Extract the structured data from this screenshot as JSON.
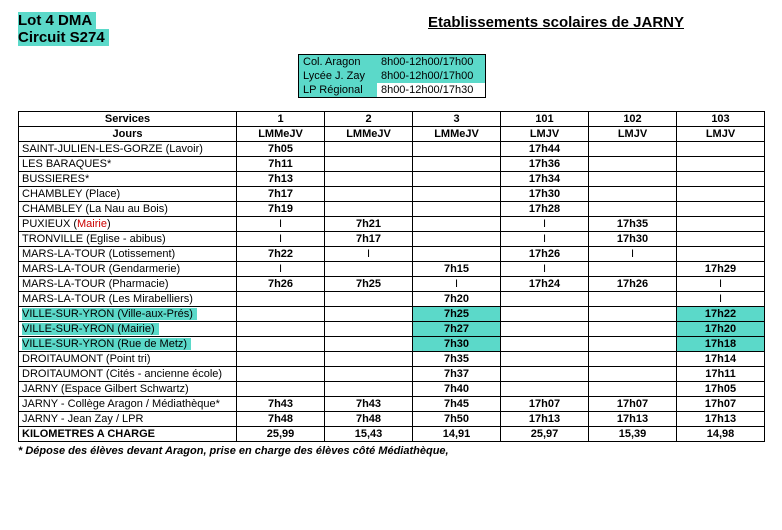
{
  "header": {
    "lot": "Lot 4 DMA",
    "circuit": "Circuit S274",
    "etab_title": "Etablissements scolaires de JARNY"
  },
  "schools": [
    {
      "name": "Col. Aragon",
      "hours": "8h00-12h00/17h00"
    },
    {
      "name": "Lycée J. Zay",
      "hours": "8h00-12h00/17h00"
    },
    {
      "name": "LP Régional",
      "hours": "8h00-12h00/17h30"
    }
  ],
  "services_label": "Services",
  "jours_label": "Jours",
  "services": [
    "1",
    "2",
    "3",
    "101",
    "102",
    "103"
  ],
  "days": [
    "LMMeJV",
    "LMMeJV",
    "LMMeJV",
    "LMJV",
    "LMJV",
    "LMJV"
  ],
  "rows": [
    {
      "stop": "SAINT-JULIEN-LES-GORZE (Lavoir)",
      "cells": [
        "7h05",
        "",
        "",
        "17h44",
        "",
        ""
      ]
    },
    {
      "stop": "LES BARAQUES*",
      "cells": [
        "7h11",
        "",
        "",
        "17h36",
        "",
        ""
      ]
    },
    {
      "stop": "BUSSIERES*",
      "cells": [
        "7h13",
        "",
        "",
        "17h34",
        "",
        ""
      ]
    },
    {
      "stop": "CHAMBLEY (Place)",
      "cells": [
        "7h17",
        "",
        "",
        "17h30",
        "",
        ""
      ]
    },
    {
      "stop": "CHAMBLEY (La Nau au Bois)",
      "cells": [
        "7h19",
        "",
        "",
        "17h28",
        "",
        ""
      ]
    },
    {
      "stop": "PUXIEUX (Mairie)",
      "red_part": "Mairie",
      "cells": [
        "I",
        "7h21",
        "",
        "I",
        "17h35",
        ""
      ]
    },
    {
      "stop": "TRONVILLE (Eglise - abibus)",
      "cells": [
        "I",
        "7h17",
        "",
        "I",
        "17h30",
        ""
      ]
    },
    {
      "stop": "MARS-LA-TOUR (Lotissement)",
      "cells": [
        "7h22",
        "I",
        "",
        "17h26",
        "I",
        ""
      ]
    },
    {
      "stop": "MARS-LA-TOUR (Gendarmerie)",
      "cells": [
        "I",
        "",
        "7h15",
        "I",
        "",
        "17h29"
      ]
    },
    {
      "stop": "MARS-LA-TOUR (Pharmacie)",
      "cells": [
        "7h26",
        "7h25",
        "I",
        "17h24",
        "17h26",
        "I"
      ]
    },
    {
      "stop": "MARS-LA-TOUR (Les Mirabelliers)",
      "cells": [
        "",
        "",
        "7h20",
        "",
        "",
        "I"
      ]
    },
    {
      "stop": "VILLE-SUR-YRON (Ville-aux-Prés)",
      "hl": true,
      "cells": [
        "",
        "",
        "7h25",
        "",
        "",
        "17h22"
      ],
      "cell_hl": [
        false,
        false,
        true,
        false,
        false,
        true
      ]
    },
    {
      "stop": "VILLE-SUR-YRON (Mairie)",
      "hl": true,
      "cells": [
        "",
        "",
        "7h27",
        "",
        "",
        "17h20"
      ],
      "cell_hl": [
        false,
        false,
        true,
        false,
        false,
        true
      ]
    },
    {
      "stop": "VILLE-SUR-YRON (Rue de Metz)",
      "hl": true,
      "cells": [
        "",
        "",
        "7h30",
        "",
        "",
        "17h18"
      ],
      "cell_hl": [
        false,
        false,
        true,
        false,
        false,
        true
      ]
    },
    {
      "stop": "DROITAUMONT (Point tri)",
      "cells": [
        "",
        "",
        "7h35",
        "",
        "",
        "17h14"
      ]
    },
    {
      "stop": "DROITAUMONT (Cités - ancienne école)",
      "cells": [
        "",
        "",
        "7h37",
        "",
        "",
        "17h11"
      ]
    },
    {
      "stop": "JARNY (Espace Gilbert Schwartz)",
      "cells": [
        "",
        "",
        "7h40",
        "",
        "",
        "17h05"
      ]
    },
    {
      "stop": "JARNY - Collège Aragon / Médiathèque*",
      "cells": [
        "7h43",
        "7h43",
        "7h45",
        "17h07",
        "17h07",
        "17h07"
      ]
    },
    {
      "stop": "JARNY - Jean Zay / LPR",
      "cells": [
        "7h48",
        "7h48",
        "7h50",
        "17h13",
        "17h13",
        "17h13"
      ]
    }
  ],
  "km_label": "KILOMETRES A CHARGE",
  "km": [
    "25,99",
    "15,43",
    "14,91",
    "25,97",
    "15,39",
    "14,98"
  ],
  "footnote": "* Dépose des élèves devant Aragon, prise en charge des élèves côté Médiathèque,"
}
